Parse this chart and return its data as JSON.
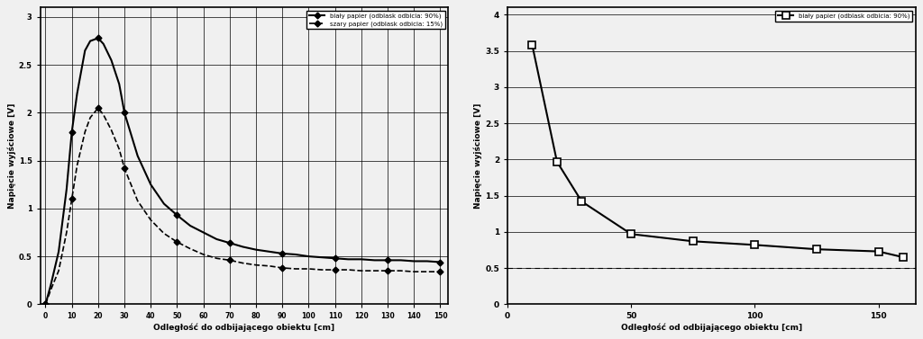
{
  "left_chart": {
    "ylabel": "Napięcie wyjściowe [V]",
    "xlabel": "Odległość do odbijającego obiektu [cm]",
    "ytick_labels": [
      "0",
      "0.5",
      "1",
      "1.5",
      "2",
      "2.5",
      "3"
    ],
    "ytick_vals": [
      0,
      0.5,
      1,
      1.5,
      2,
      2.5,
      3
    ],
    "ylim": [
      0,
      3.1
    ],
    "xtick_vals": [
      0,
      10,
      20,
      30,
      40,
      50,
      60,
      70,
      80,
      90,
      100,
      110,
      120,
      130,
      140,
      150
    ],
    "xlim": [
      -2,
      153
    ],
    "white_x": [
      0,
      2,
      5,
      8,
      10,
      12,
      15,
      17,
      20,
      22,
      25,
      28,
      30,
      35,
      40,
      45,
      50,
      55,
      60,
      65,
      70,
      75,
      80,
      85,
      90,
      95,
      100,
      105,
      110,
      115,
      120,
      125,
      130,
      135,
      140,
      145,
      150
    ],
    "white_y": [
      0.0,
      0.2,
      0.55,
      1.2,
      1.8,
      2.2,
      2.65,
      2.75,
      2.78,
      2.72,
      2.55,
      2.3,
      2.0,
      1.55,
      1.25,
      1.05,
      0.93,
      0.82,
      0.75,
      0.68,
      0.64,
      0.6,
      0.57,
      0.55,
      0.53,
      0.52,
      0.5,
      0.49,
      0.48,
      0.47,
      0.47,
      0.46,
      0.46,
      0.46,
      0.45,
      0.45,
      0.44
    ],
    "gray_x": [
      0,
      2,
      5,
      8,
      10,
      12,
      15,
      17,
      20,
      22,
      25,
      28,
      30,
      35,
      40,
      45,
      50,
      55,
      60,
      65,
      70,
      75,
      80,
      85,
      90,
      95,
      100,
      105,
      110,
      115,
      120,
      125,
      130,
      135,
      140,
      145,
      150
    ],
    "gray_y": [
      0.0,
      0.15,
      0.35,
      0.75,
      1.1,
      1.45,
      1.8,
      1.95,
      2.05,
      1.98,
      1.82,
      1.62,
      1.42,
      1.08,
      0.88,
      0.74,
      0.65,
      0.58,
      0.52,
      0.48,
      0.46,
      0.43,
      0.41,
      0.4,
      0.38,
      0.37,
      0.37,
      0.36,
      0.36,
      0.36,
      0.35,
      0.35,
      0.35,
      0.35,
      0.34,
      0.34,
      0.34
    ],
    "legend_white": "biały papier (odblask odbicia: 90%)",
    "legend_gray": "szary papier (odblask odbicia: 15%)"
  },
  "right_chart": {
    "ylabel": "Napięcie wyjściowe [V]",
    "xlabel": "Odległość od odbijającego obiektu [cm]",
    "ytick_labels": [
      "0",
      "0.5",
      "1",
      "1.5",
      "2",
      "2.5",
      "3",
      "3.5",
      "4"
    ],
    "ytick_vals": [
      0,
      0.5,
      1,
      1.5,
      2,
      2.5,
      3,
      3.5,
      4
    ],
    "ylim": [
      0,
      4.1
    ],
    "xtick_vals": [
      0,
      50,
      100,
      150
    ],
    "xlim": [
      0,
      165
    ],
    "white_x": [
      10,
      20,
      30,
      50,
      75,
      100,
      125,
      150,
      160
    ],
    "white_y": [
      3.58,
      1.97,
      1.42,
      0.97,
      0.87,
      0.82,
      0.76,
      0.73,
      0.65
    ],
    "legend_white": "biały papier (odblask odbicia: 90%)",
    "hline_y": 0.5
  },
  "bg": "#f0f0f0",
  "line_color": "#000000"
}
